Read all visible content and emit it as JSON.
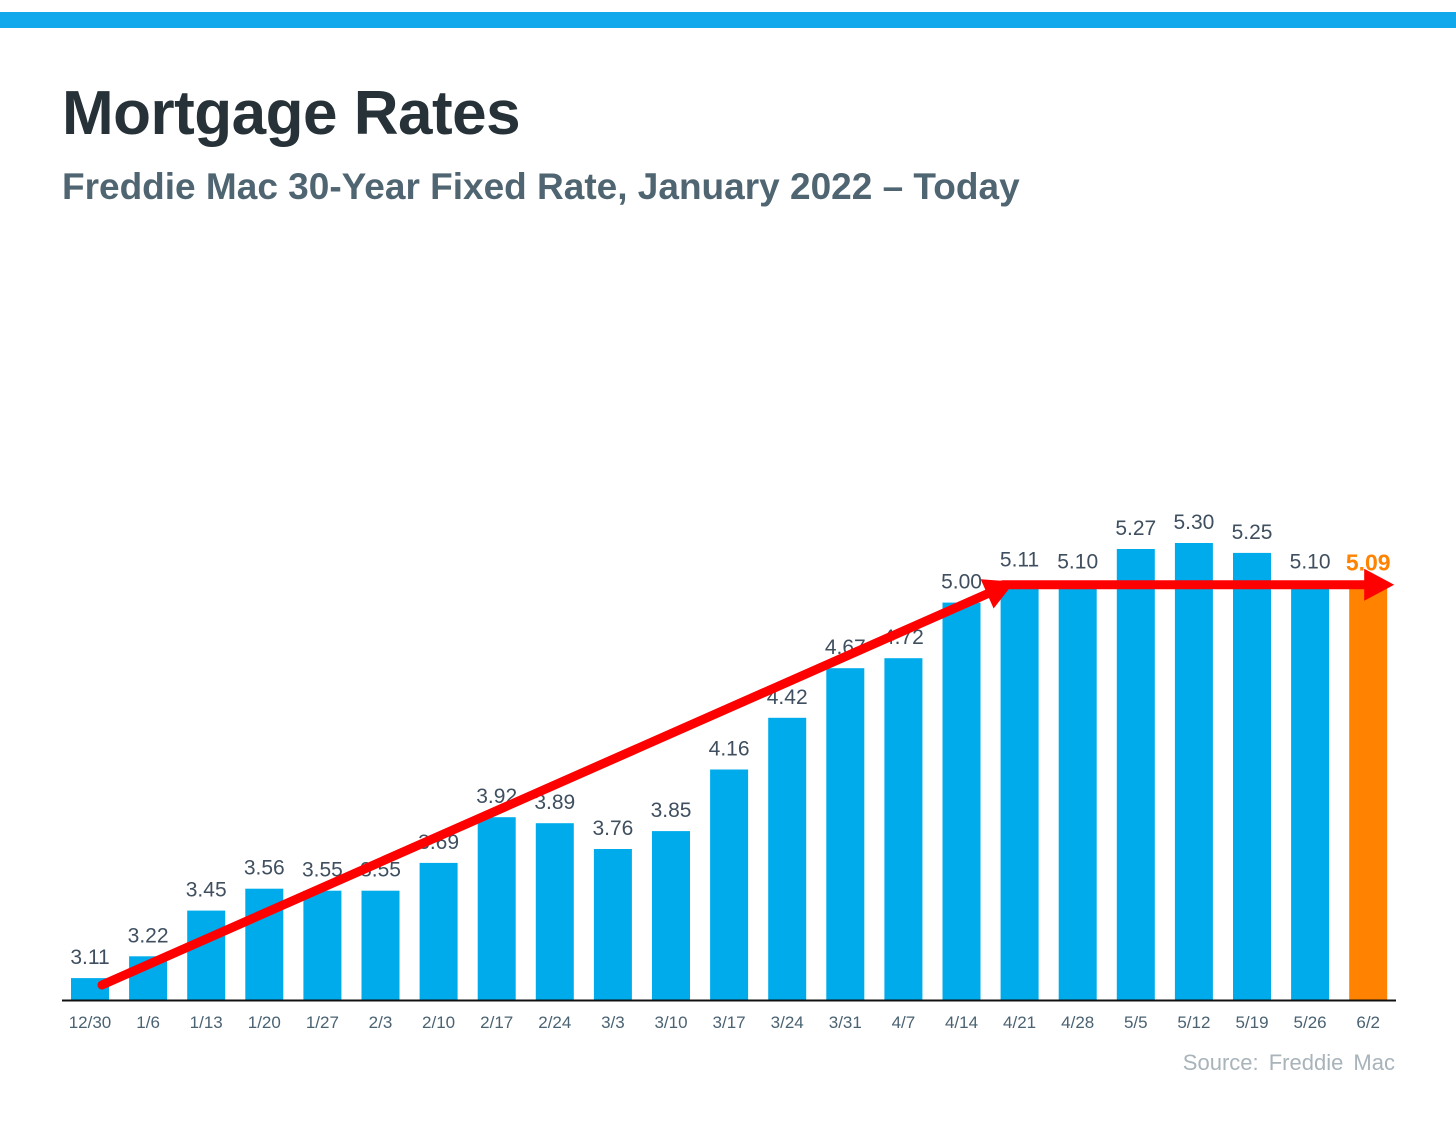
{
  "title": "Mortgage Rates",
  "subtitle": "Freddie Mac 30-Year Fixed Rate, January 2022 – Today",
  "source": "Source:  Freddie  Mac",
  "colors": {
    "top_bar": "#12a9ec",
    "bar": "#00abeb",
    "highlight_bar": "#ff8200",
    "arrow": "#ff0000",
    "value_label": "#3f4f5f",
    "tick_label": "#4a6272",
    "axis": "#111111"
  },
  "chart_data": {
    "type": "bar",
    "title": "Mortgage Rates",
    "subtitle": "Freddie Mac 30-Year Fixed Rate, January 2022 – Today",
    "xlabel": "",
    "ylabel": "",
    "categories": [
      "12/30",
      "1/6",
      "1/13",
      "1/20",
      "1/27",
      "2/3",
      "2/10",
      "2/17",
      "2/24",
      "3/3",
      "3/10",
      "3/17",
      "3/24",
      "3/31",
      "4/7",
      "4/14",
      "4/21",
      "4/28",
      "5/5",
      "5/12",
      "5/19",
      "5/26",
      "6/2"
    ],
    "value_labels": [
      "3.11",
      "3.22",
      "3.45",
      "3.56",
      "3.55",
      "3.55",
      "3.69",
      "3.92",
      "3.89",
      "3.76",
      "3.85",
      "4.16",
      "4.42",
      "4.67",
      "4.72",
      "5.00",
      "5.11",
      "5.10",
      "5.27",
      "5.30",
      "5.25",
      "5.10",
      "5.09"
    ],
    "values": [
      3.11,
      3.22,
      3.45,
      3.56,
      3.55,
      3.55,
      3.69,
      3.92,
      3.89,
      3.76,
      3.85,
      4.16,
      4.42,
      4.67,
      4.72,
      5.0,
      5.11,
      5.1,
      5.27,
      5.3,
      5.25,
      5.1,
      5.09
    ],
    "highlight_index": 22,
    "grid": false,
    "legend": "none",
    "annotations": [
      {
        "type": "arrow",
        "from_category": "12/30",
        "from_value": 3.11,
        "to_category": "4/21",
        "to_value": 5.11
      },
      {
        "type": "arrow",
        "from_category": "4/21",
        "to_category": "6/2",
        "value": 5.09
      }
    ]
  }
}
